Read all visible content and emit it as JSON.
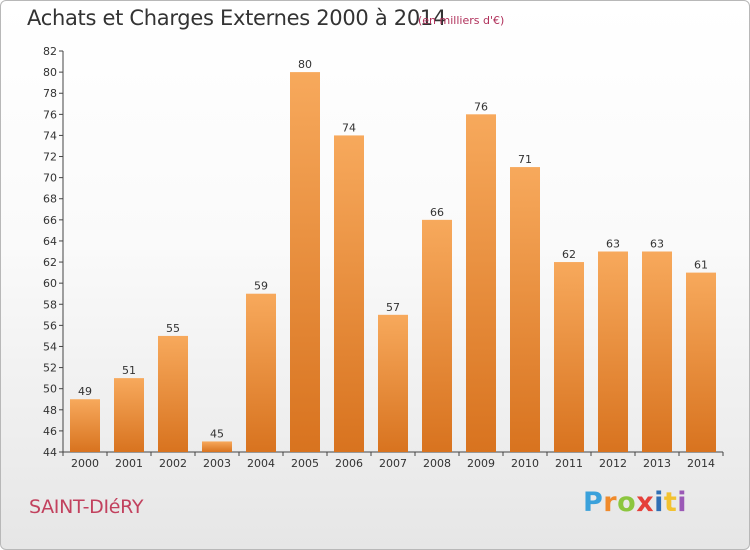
{
  "header": {
    "title": "Achats et Charges Externes 2000 à 2014",
    "subtitle": "(en milliers d'€)"
  },
  "footer": {
    "commune": "SAINT-DIéRY",
    "brand": "Proxiti",
    "brand_colors": [
      "#3aa1db",
      "#f08a2b",
      "#8cc63f",
      "#e5403a",
      "#2f6fb5",
      "#f2c230",
      "#9b59b6"
    ]
  },
  "colors": {
    "bar_light": "#f7a95c",
    "bar_dark": "#d8731f",
    "axis": "#444444"
  },
  "chart_data": {
    "type": "bar",
    "title": "Achats et Charges Externes 2000 à 2014",
    "subtitle": "(en milliers d'€)",
    "xlabel": "",
    "ylabel": "",
    "categories": [
      "2000",
      "2001",
      "2002",
      "2003",
      "2004",
      "2005",
      "2006",
      "2007",
      "2008",
      "2009",
      "2010",
      "2011",
      "2012",
      "2013",
      "2014"
    ],
    "values": [
      49,
      51,
      55,
      45,
      59,
      80,
      74,
      57,
      66,
      76,
      71,
      62,
      63,
      63,
      61
    ],
    "ylim": [
      44,
      82
    ],
    "yticks": [
      44,
      46,
      48,
      50,
      52,
      54,
      56,
      58,
      60,
      62,
      64,
      66,
      68,
      70,
      72,
      74,
      76,
      78,
      80,
      82
    ],
    "grid": false,
    "data_labels": true
  }
}
